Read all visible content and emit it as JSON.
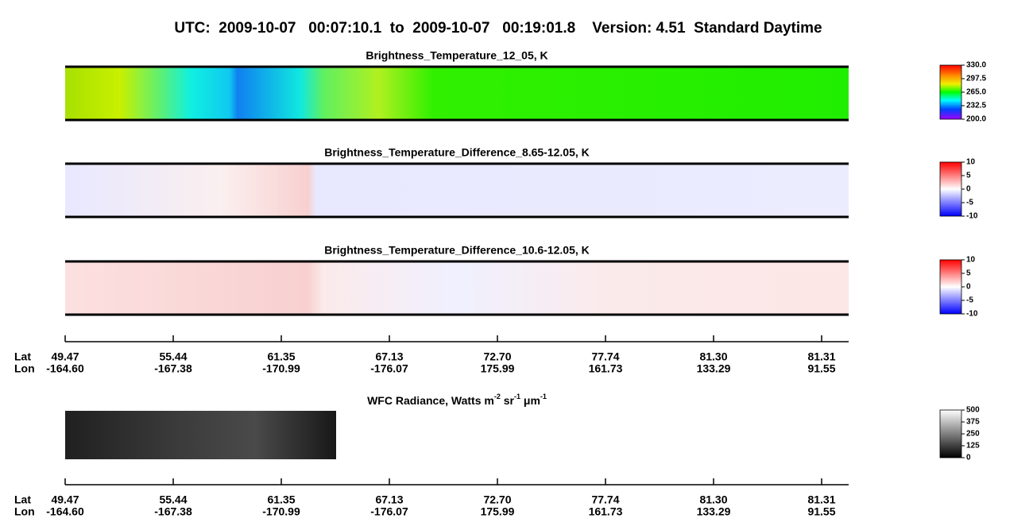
{
  "title": "UTC:  2009-10-07   00:07:10.1  to  2009-10-07   00:19:01.8    Version: 4.51  Standard Daytime",
  "panels": [
    {
      "title": "Brightness_Temperature_12_05, K",
      "colorbar": [
        "330.0",
        "297.5",
        "265.0",
        "232.5",
        "200.0"
      ]
    },
    {
      "title": "Brightness_Temperature_Difference_8.65-12.05, K",
      "colorbar": [
        "10",
        "5",
        "0",
        "-5",
        "-10"
      ]
    },
    {
      "title": "Brightness_Temperature_Difference_10.6-12.05, K",
      "colorbar": [
        "10",
        "5",
        "0",
        "-5",
        "-10"
      ]
    }
  ],
  "wfc": {
    "title_parts": [
      "WFC Radiance, Watts m",
      "-2",
      " sr",
      "-1",
      " μm",
      "-1"
    ],
    "colorbar": [
      "500",
      "375",
      "250",
      "125",
      "0"
    ]
  },
  "axis": {
    "lat_label": "Lat",
    "lon_label": "Lon",
    "lat": [
      "49.47",
      "55.44",
      "61.35",
      "67.13",
      "72.70",
      "77.74",
      "81.30",
      "81.31"
    ],
    "lon": [
      "-164.60",
      "-167.38",
      "-170.99",
      "-176.07",
      "175.99",
      "161.73",
      "133.29",
      "91.55"
    ]
  }
}
